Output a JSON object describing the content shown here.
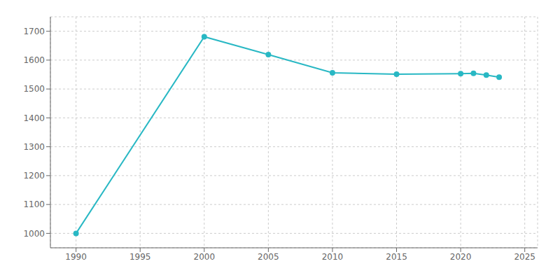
{
  "chart_data": {
    "type": "line",
    "x": [
      1990,
      2000,
      2005,
      2010,
      2015,
      2020,
      2021,
      2022,
      2023
    ],
    "values": [
      1000,
      1681,
      1619,
      1556,
      1551,
      1553,
      1554,
      1548,
      1541
    ],
    "color": "#29b8c4",
    "marker": "o",
    "xlim": [
      1988,
      2026
    ],
    "ylim": [
      950,
      1750
    ],
    "xticks": [
      1990,
      1995,
      2000,
      2005,
      2010,
      2015,
      2020,
      2025
    ],
    "yticks": [
      1000,
      1100,
      1200,
      1300,
      1400,
      1500,
      1600,
      1700
    ],
    "grid": true
  }
}
